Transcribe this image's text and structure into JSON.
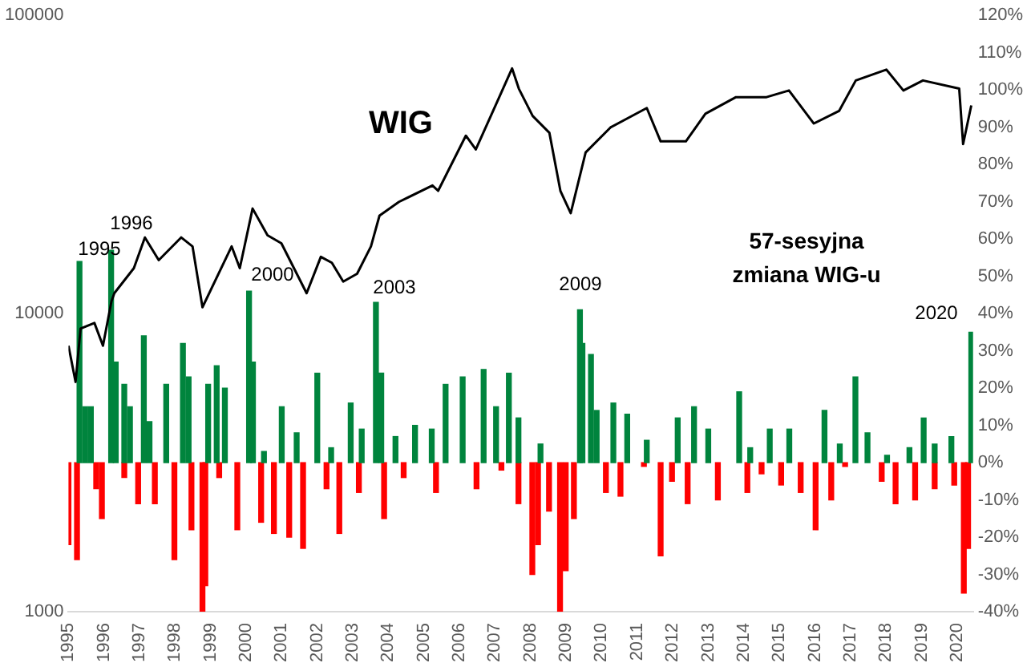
{
  "chart_data": {
    "type": "line",
    "log": "y",
    "grid": false,
    "legend": false,
    "xlim": [
      1995,
      2020.45
    ],
    "xticks": [
      1995,
      1996,
      1997,
      1998,
      1999,
      2000,
      2001,
      2002,
      2003,
      2004,
      2005,
      2006,
      2007,
      2008,
      2009,
      2010,
      2011,
      2012,
      2013,
      2014,
      2015,
      2016,
      2017,
      2018,
      2019,
      2020
    ],
    "ylim": [
      1000,
      100000
    ],
    "yticks": [
      1000,
      10000,
      100000
    ],
    "y2lim": [
      -40,
      120
    ],
    "y2ticks": [
      {
        "value": -40,
        "label": "-40%"
      },
      {
        "value": -30,
        "label": "-30%"
      },
      {
        "value": -20,
        "label": "-20%"
      },
      {
        "value": -10,
        "label": "-10%"
      },
      {
        "value": 0,
        "label": "0%"
      },
      {
        "value": 10,
        "label": "10%"
      },
      {
        "value": 20,
        "label": "20%"
      },
      {
        "value": 30,
        "label": "30%"
      },
      {
        "value": 40,
        "label": "40%"
      },
      {
        "value": 50,
        "label": "50%"
      },
      {
        "value": 60,
        "label": "60%"
      },
      {
        "value": 70,
        "label": "70%"
      },
      {
        "value": 80,
        "label": "80%"
      },
      {
        "value": 90,
        "label": "90%"
      },
      {
        "value": 100,
        "label": "100%"
      },
      {
        "value": 110,
        "label": "110%"
      },
      {
        "value": 120,
        "label": "120%"
      }
    ],
    "series": [
      {
        "color": "#000000",
        "x": [
          1995.0,
          1995.2,
          1995.34,
          1995.73,
          1995.97,
          1996.21,
          1996.29,
          1996.84,
          1997.15,
          1997.54,
          1998.17,
          1998.49,
          1998.77,
          1999.59,
          1999.82,
          2000.18,
          2000.6,
          2000.99,
          2001.7,
          2002.1,
          2002.41,
          2002.73,
          2003.12,
          2003.51,
          2003.75,
          2004.3,
          2005.24,
          2005.4,
          2006.18,
          2006.46,
          2007.12,
          2007.48,
          2007.67,
          2008.06,
          2008.53,
          2008.84,
          2009.13,
          2009.55,
          2010.25,
          2011.27,
          2011.66,
          2012.37,
          2012.92,
          2013.78,
          2014.64,
          2015.27,
          2015.97,
          2016.68,
          2017.15,
          2018.01,
          2018.49,
          2019.04,
          2020.06,
          2020.17,
          2020.4
        ],
        "values": [
          7800,
          5900,
          8900,
          9300,
          7800,
          11000,
          11700,
          14200,
          18000,
          15100,
          18000,
          16800,
          10500,
          16800,
          14200,
          22500,
          18300,
          17200,
          11700,
          15500,
          14800,
          12800,
          13600,
          16800,
          21300,
          23700,
          26900,
          25800,
          39500,
          35500,
          53200,
          66400,
          56800,
          46000,
          40400,
          25800,
          21700,
          34700,
          42100,
          48900,
          37800,
          37800,
          46800,
          53200,
          53200,
          56000,
          43400,
          47800,
          60500,
          65800,
          56000,
          60500,
          56800,
          37000,
          49900
        ]
      },
      {
        "type": "bar",
        "axis": "y2",
        "color": "#00843d",
        "x": [
          1995.31,
          1995.47,
          1995.63,
          1996.2,
          1996.33,
          1996.57,
          1996.73,
          1997.12,
          1997.28,
          1997.75,
          1998.22,
          1998.38,
          1998.93,
          1999.17,
          1999.4,
          2000.08,
          2000.19,
          2000.5,
          2001.0,
          2001.42,
          2002.0,
          2002.39,
          2002.94,
          2003.25,
          2003.65,
          2003.8,
          2004.2,
          2004.75,
          2005.22,
          2005.61,
          2006.09,
          2006.68,
          2007.03,
          2007.39,
          2007.66,
          2008.28,
          2009.39,
          2009.46,
          2009.7,
          2009.86,
          2010.33,
          2010.72,
          2011.27,
          2012.14,
          2012.6,
          2013.0,
          2013.87,
          2014.18,
          2014.73,
          2015.28,
          2016.27,
          2016.7,
          2017.14,
          2017.48,
          2018.03,
          2018.66,
          2019.06,
          2019.37,
          2019.84,
          2020.4
        ],
        "values": [
          54,
          15,
          15,
          57,
          27,
          21,
          15,
          34,
          11,
          21,
          32,
          23,
          21,
          26,
          20,
          46,
          27,
          3,
          15,
          8,
          24,
          4,
          16,
          9,
          43,
          24,
          7,
          10,
          9,
          21,
          23,
          25,
          15,
          24,
          12,
          5,
          41,
          32,
          29,
          14,
          16,
          13,
          6,
          12,
          15,
          9,
          19,
          4,
          9,
          9,
          14,
          5,
          23,
          8,
          2,
          4,
          12,
          5,
          7,
          35
        ]
      },
      {
        "type": "bar",
        "axis": "y2",
        "color": "#ff0000",
        "x": [
          1995.0,
          1995.24,
          1995.78,
          1995.94,
          1996.57,
          1996.96,
          1997.43,
          1997.98,
          1998.46,
          1998.77,
          1998.85,
          1999.24,
          1999.75,
          2000.42,
          2000.78,
          2001.21,
          2001.6,
          2002.26,
          2002.62,
          2003.17,
          2003.88,
          2004.43,
          2005.34,
          2006.48,
          2007.18,
          2007.66,
          2008.05,
          2008.21,
          2008.52,
          2008.83,
          2008.99,
          2009.22,
          2010.12,
          2010.53,
          2011.19,
          2011.66,
          2011.98,
          2012.42,
          2013.27,
          2014.1,
          2014.5,
          2015.05,
          2015.6,
          2016.02,
          2016.46,
          2016.85,
          2017.88,
          2018.27,
          2018.82,
          2019.37,
          2019.92,
          2020.19,
          2020.31
        ],
        "values": [
          -22,
          -26,
          -7,
          -15,
          -4,
          -11,
          -11,
          -26,
          -18,
          -40,
          -33,
          -4,
          -18,
          -16,
          -19,
          -20,
          -23,
          -7,
          -19,
          -8,
          -15,
          -4,
          -8,
          -7,
          -2,
          -11,
          -30,
          -22,
          -13,
          -40,
          -29,
          -15,
          -8,
          -9,
          -1,
          -25,
          -5,
          -11,
          -10,
          -8,
          -3,
          -6,
          -8,
          -18,
          -10,
          -1,
          -5,
          -11,
          -10,
          -7,
          -6,
          -35,
          -23
        ]
      }
    ],
    "annotations": [
      "WIG",
      "57-sesyjna zmiana WIG-u",
      "1995",
      "1996",
      "2000",
      "2003",
      "2009",
      "2020"
    ]
  }
}
